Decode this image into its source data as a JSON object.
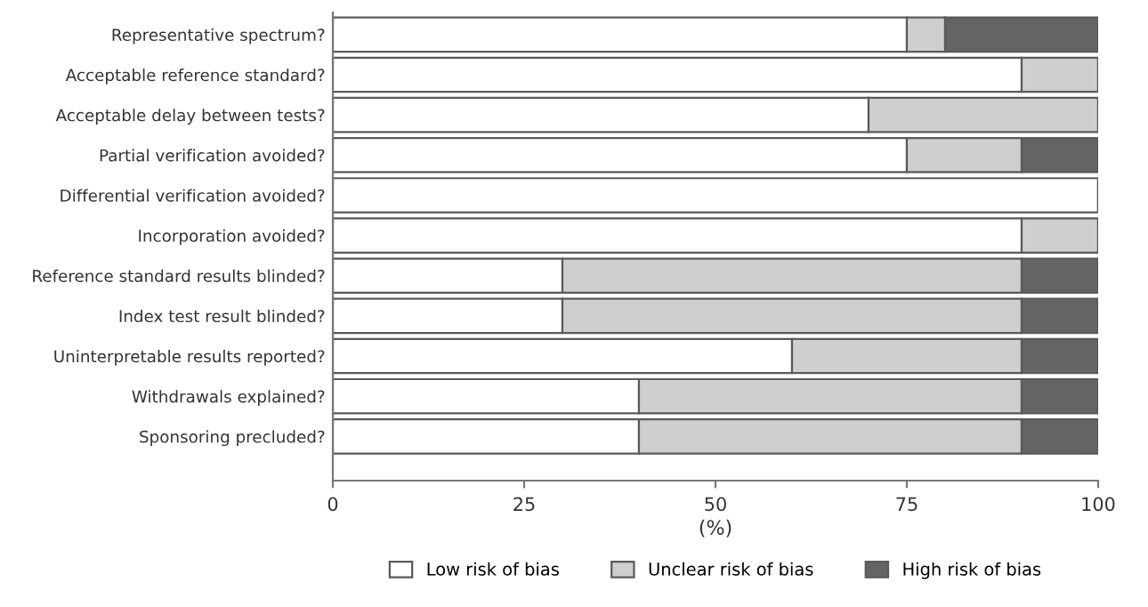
{
  "chart_data": {
    "type": "bar",
    "orientation": "horizontal",
    "stacked": true,
    "xlabel": "(%)",
    "categories": [
      "Representative spectrum?",
      "Acceptable reference standard?",
      "Acceptable delay between tests?",
      "Partial verification avoided?",
      "Differential verification avoided?",
      "Incorporation avoided?",
      "Reference standard results blinded?",
      "Index test result blinded?",
      "Uninterpretable results reported?",
      "Withdrawals explained?",
      "Sponsoring precluded?"
    ],
    "series": [
      {
        "name": "Low risk of bias",
        "color": "#ffffff",
        "values": [
          75,
          90,
          70,
          75,
          100,
          90,
          30,
          30,
          60,
          40,
          40
        ]
      },
      {
        "name": "Unclear risk of bias",
        "color": "#cdcfd0",
        "values": [
          5,
          10,
          30,
          15,
          0,
          10,
          60,
          60,
          30,
          50,
          50
        ]
      },
      {
        "name": "High risk of bias",
        "color": "#636466",
        "values": [
          20,
          0,
          0,
          10,
          0,
          0,
          10,
          10,
          10,
          10,
          10
        ]
      }
    ],
    "xlim": [
      0,
      100
    ],
    "xticks": [
      0,
      25,
      50,
      75,
      100
    ],
    "grid": false,
    "legend": "bottom"
  }
}
